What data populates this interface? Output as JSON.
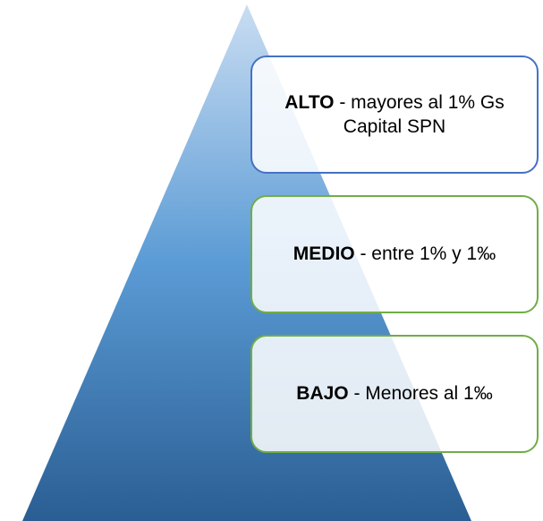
{
  "levels": [
    {
      "name": "ALTO",
      "description": "- mayores al 1% Gs Capital SPN"
    },
    {
      "name": "MEDIO",
      "description": "- entre 1% y 1‰"
    },
    {
      "name": "BAJO",
      "description": "- Menores al 1‰"
    }
  ]
}
